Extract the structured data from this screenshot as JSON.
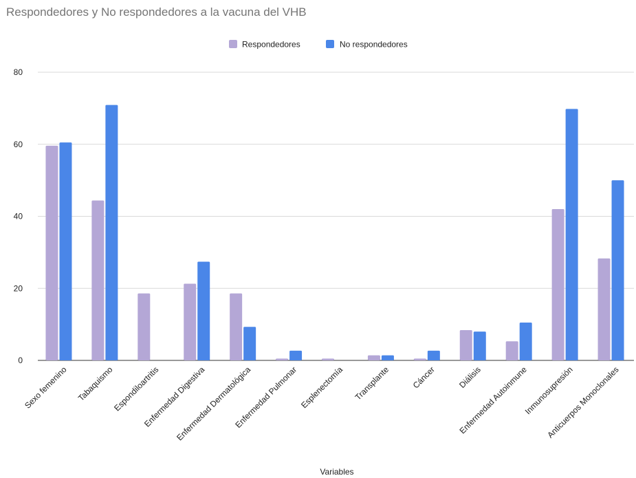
{
  "chart_data": {
    "type": "bar",
    "title": "Respondedores y No respondedores a la vacuna del VHB",
    "xlabel": "Variables",
    "ylabel": "",
    "ylim": [
      0,
      80
    ],
    "yticks": [
      0,
      20,
      40,
      60,
      80
    ],
    "grid": true,
    "legend_position": "top-center",
    "categories": [
      "Sexo femenino",
      "Tabaquismo",
      "Espondiloartritis",
      "Enfermedad Digestiva",
      "Enfermedad Dermatológica",
      "Enfermedad Pulmonar",
      "Esplenectomía",
      "Transplante",
      "Cáncer",
      "Diálisis",
      "Enfermedad Autoinmune",
      "Inmunosupresión",
      "Anticuerpos Monoclonales"
    ],
    "series": [
      {
        "name": "Respondedores",
        "color": "#b4a7d6",
        "values": [
          59.6,
          44.4,
          18.6,
          21.3,
          18.6,
          0.5,
          0.5,
          1.4,
          0.5,
          8.4,
          5.3,
          42.0,
          28.3
        ]
      },
      {
        "name": "No respondedores",
        "color": "#4a86e8",
        "values": [
          60.5,
          70.9,
          0,
          27.4,
          9.3,
          2.7,
          0,
          1.4,
          2.7,
          8.0,
          10.5,
          69.8,
          50.0
        ]
      }
    ]
  }
}
